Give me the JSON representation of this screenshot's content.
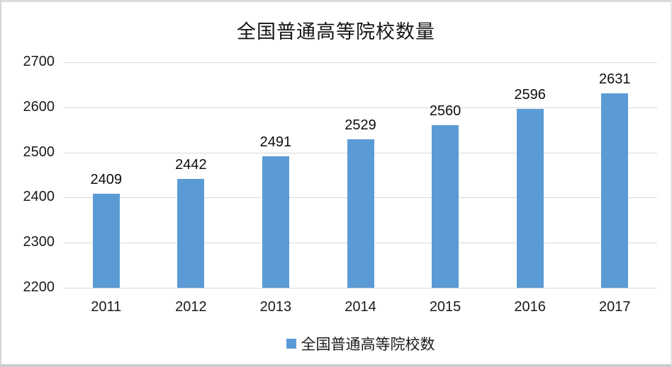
{
  "chart_data": {
    "type": "bar",
    "title": "全国普通高等院校数量",
    "categories": [
      "2011",
      "2012",
      "2013",
      "2014",
      "2015",
      "2016",
      "2017"
    ],
    "values": [
      2409,
      2442,
      2491,
      2529,
      2560,
      2596,
      2631
    ],
    "series_name": "全国普通高等院校数",
    "xlabel": "",
    "ylabel": "",
    "ylim": [
      2200,
      2700
    ],
    "yticks": [
      2200,
      2300,
      2400,
      2500,
      2600,
      2700
    ],
    "grid": true,
    "data_labels": true,
    "legend_position": "bottom",
    "bar_color": "#5B9BD5",
    "gridline_color": "#d9d9d9"
  },
  "legend": {
    "label": "全国普通高等院校数"
  }
}
